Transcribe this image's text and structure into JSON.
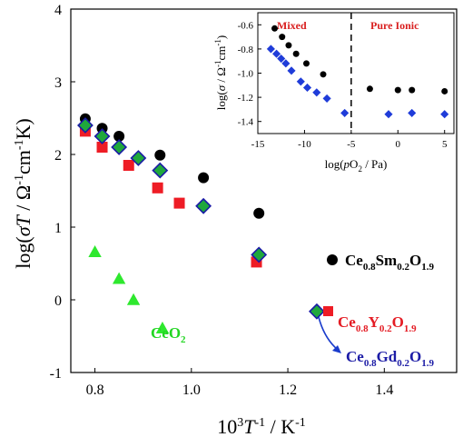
{
  "chart_data": [
    {
      "type": "scatter",
      "xlabel": "10³T⁻¹ / K⁻¹",
      "ylabel": "log(σT / Ω⁻¹cm⁻¹K)",
      "xlim": [
        0.75,
        1.55
      ],
      "ylim": [
        -1,
        4
      ],
      "xticks": [
        "0.8",
        "1.0",
        "1.2",
        "1.4"
      ],
      "yticks": [
        "-1",
        "0",
        "1",
        "2",
        "3",
        "4"
      ],
      "series": [
        {
          "name": "Ce0.8Sm0.2O1.9",
          "marker": "circle",
          "color": "#000000",
          "x": [
            0.78,
            0.815,
            0.85,
            0.935,
            1.025,
            1.14
          ],
          "y": [
            2.49,
            2.36,
            2.25,
            1.99,
            1.68,
            1.19
          ]
        },
        {
          "name": "Ce0.8Y0.2O1.9",
          "marker": "square",
          "color": "#ee1c25",
          "x": [
            0.78,
            0.815,
            0.87,
            0.93,
            0.975,
            1.135
          ],
          "y": [
            2.32,
            2.1,
            1.85,
            1.54,
            1.33,
            0.52
          ]
        },
        {
          "name": "Ce0.8Gd0.2O1.9",
          "marker": "diamond",
          "color": "#1fa83c",
          "edge_color": "#1a1aa6",
          "x": [
            0.78,
            0.815,
            0.85,
            0.89,
            0.935,
            1.025,
            1.14,
            1.26
          ],
          "y": [
            2.4,
            2.25,
            2.1,
            1.95,
            1.78,
            1.29,
            0.62,
            -0.16
          ]
        },
        {
          "name": "CeO2",
          "marker": "triangle",
          "color": "#2ee82e",
          "x": [
            0.8,
            0.85,
            0.88,
            0.94
          ],
          "y": [
            0.66,
            0.29,
            0.0,
            -0.39
          ]
        }
      ],
      "legend": {
        "sm": {
          "main": "Ce",
          "s1": "0.8",
          "mid": "Sm",
          "s2": "0.2",
          "end": "O",
          "s3": "1.9"
        },
        "y": {
          "main": "Ce",
          "s1": "0.8",
          "mid": "Y",
          "s2": "0.2",
          "end": "O",
          "s3": "1.9"
        },
        "gd": {
          "main": "Ce",
          "s1": "0.8",
          "mid": "Gd",
          "s2": "0.2",
          "end": "O",
          "s3": "1.9"
        },
        "ceo2": {
          "main": "CeO",
          "s1": "2"
        },
        "arrow_color": "#1a3ccc"
      }
    },
    {
      "type": "scatter",
      "xlabel": "log(pO₂ / Pa)",
      "ylabel": "log(σ / Ω⁻¹cm⁻¹)",
      "xlim": [
        -15,
        6
      ],
      "ylim": [
        -1.5,
        -0.5
      ],
      "xticks": [
        "-15",
        "-10",
        "-5",
        "0",
        "5"
      ],
      "yticks": [
        "-0.6",
        "-0.8",
        "-1.0",
        "-1.2",
        "-1.4"
      ],
      "divider_x": -5,
      "annotations": [
        {
          "text": "Mixed",
          "color": "#d92020"
        },
        {
          "text": "Pure Ionic",
          "color": "#d92020"
        }
      ],
      "series": [
        {
          "name": "black",
          "marker": "circle",
          "color": "#000000",
          "x": [
            -13.2,
            -12.4,
            -11.7,
            -10.9,
            -9.8,
            -8.0,
            -3.0,
            0.0,
            1.5,
            5.0
          ],
          "y": [
            -0.63,
            -0.7,
            -0.77,
            -0.84,
            -0.92,
            -1.01,
            -1.13,
            -1.14,
            -1.14,
            -1.15
          ]
        },
        {
          "name": "blue",
          "marker": "diamond",
          "color": "#1f3cd9",
          "x": [
            -13.6,
            -13.0,
            -12.5,
            -12.0,
            -11.4,
            -10.4,
            -9.7,
            -8.7,
            -7.6,
            -5.7,
            -1.0,
            1.5,
            5.0
          ],
          "y": [
            -0.8,
            -0.84,
            -0.88,
            -0.92,
            -0.98,
            -1.07,
            -1.12,
            -1.16,
            -1.21,
            -1.33,
            -1.34,
            -1.33,
            -1.34
          ]
        }
      ]
    }
  ]
}
